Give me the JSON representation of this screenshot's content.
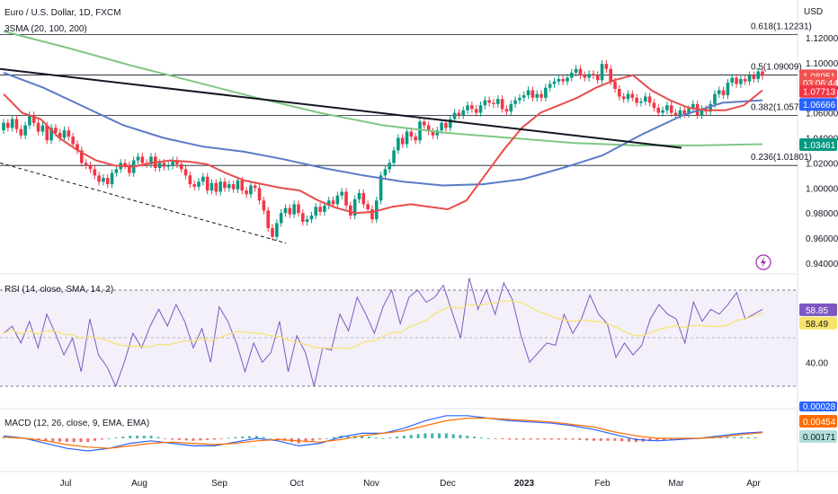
{
  "header": {
    "symbol_title": "Euro / U.S. Dollar, 1D, FXCM",
    "indicator_label": "3SMA (20, 100, 200)",
    "currency": "USD"
  },
  "price_axis": {
    "ticks": [
      "1.12000",
      "1.10000",
      "1.08000",
      "1.06000",
      "1.04000",
      "1.02000",
      "1.00000",
      "0.98000",
      "0.96000",
      "0.94000"
    ],
    "tick_values": [
      1.12,
      1.1,
      1.08,
      1.06,
      1.04,
      1.02,
      1.0,
      0.98,
      0.96,
      0.94
    ],
    "badges": [
      {
        "text": "1.08951",
        "value": 1.0895,
        "color": "#ef5350",
        "text_color": "#ffffff"
      },
      {
        "text": "03:06:44",
        "value": 1.084,
        "color": "#ef5350",
        "text_color": "#ffffff"
      },
      {
        "text": "1.07713",
        "value": 1.0771,
        "color": "#f23645",
        "text_color": "#ffffff"
      },
      {
        "text": "1.06666",
        "value": 1.0667,
        "color": "#2962ff",
        "text_color": "#ffffff"
      },
      {
        "text": "1.03461",
        "value": 1.0346,
        "color": "#089981",
        "text_color": "#ffffff"
      }
    ]
  },
  "fib_levels": [
    {
      "label": "0.618(1.12231)",
      "value": 1.1223
    },
    {
      "label": "0.5(1.09009)",
      "value": 1.0901
    },
    {
      "label": "0.382(1.05787)",
      "value": 1.0579
    },
    {
      "label": "0.236(1.01801)",
      "value": 1.018
    }
  ],
  "rsi": {
    "label": "RSI (14, close, SMA, 14, 2)",
    "tick": "40.00",
    "badge_rsi": "58.85",
    "badge_sma": "58.49"
  },
  "macd": {
    "label": "MACD (12, 26, close, 9, EMA, EMA)",
    "badge_top": "0.00028",
    "badge_signal": "0.00454",
    "badge_hist": "0.00171"
  },
  "time_axis": {
    "labels": [
      "Jul",
      "Aug",
      "Sep",
      "Oct",
      "Nov",
      "Dec",
      "2023",
      "Feb",
      "Mar",
      "Apr"
    ]
  },
  "chart_data": {
    "type": "candlestick",
    "title": "Euro / U.S. Dollar, 1D, FXCM",
    "y_range": [
      0.935,
      1.1285
    ],
    "closes": [
      1.052,
      1.048,
      1.055,
      1.047,
      1.042,
      1.05,
      1.058,
      1.052,
      1.045,
      1.05,
      1.038,
      1.048,
      1.044,
      1.04,
      1.046,
      1.041,
      1.035,
      1.03,
      1.02,
      1.018,
      1.015,
      1.01,
      1.005,
      1.008,
      1.003,
      1.012,
      1.015,
      1.02,
      1.018,
      1.012,
      1.022,
      1.025,
      1.02,
      1.019,
      1.025,
      1.016,
      1.02,
      1.017,
      1.018,
      1.022,
      1.019,
      1.015,
      1.01,
      1.003,
      1.001,
      1.005,
      1.009,
      0.998,
      1.004,
      0.997,
      1.005,
      1.0,
      1.003,
      0.999,
      1.006,
      0.998,
      0.995,
      1.002,
      1.0,
      0.99,
      0.982,
      0.968,
      0.961,
      0.972,
      0.98,
      0.984,
      0.979,
      0.987,
      0.98,
      0.973,
      0.975,
      0.978,
      0.985,
      0.981,
      0.986,
      0.99,
      0.987,
      0.994,
      0.997,
      0.986,
      0.978,
      0.991,
      0.996,
      0.987,
      0.983,
      0.975,
      0.99,
      1.01,
      1.015,
      1.02,
      1.03,
      1.04,
      1.035,
      1.045,
      1.041,
      1.038,
      1.053,
      1.05,
      1.045,
      1.042,
      1.046,
      1.052,
      1.048,
      1.055,
      1.06,
      1.058,
      1.062,
      1.066,
      1.063,
      1.06,
      1.066,
      1.07,
      1.068,
      1.067,
      1.071,
      1.063,
      1.061,
      1.067,
      1.07,
      1.072,
      1.074,
      1.078,
      1.072,
      1.075,
      1.072,
      1.08,
      1.083,
      1.085,
      1.087,
      1.085,
      1.088,
      1.092,
      1.095,
      1.09,
      1.088,
      1.091,
      1.09,
      1.086,
      1.099,
      1.095,
      1.085,
      1.079,
      1.073,
      1.071,
      1.075,
      1.072,
      1.068,
      1.069,
      1.073,
      1.068,
      1.064,
      1.06,
      1.062,
      1.066,
      1.06,
      1.058,
      1.062,
      1.059,
      1.063,
      1.067,
      1.058,
      1.063,
      1.061,
      1.067,
      1.075,
      1.078,
      1.074,
      1.084,
      1.088,
      1.083,
      1.087,
      1.085,
      1.09,
      1.087,
      1.093,
      1.0895
    ],
    "sma_20_red": [
      1.075,
      1.06,
      1.055,
      1.04,
      1.03,
      1.022,
      1.018,
      1.017,
      1.02,
      1.022,
      1.021,
      1.019,
      1.012,
      1.006,
      1.003,
      1.0,
      0.998,
      0.99,
      0.984,
      0.98,
      0.981,
      0.985,
      0.987,
      0.985,
      0.983,
      0.99,
      1.01,
      1.03,
      1.048,
      1.06,
      1.066,
      1.072,
      1.08,
      1.086,
      1.09,
      1.078,
      1.07,
      1.064,
      1.062,
      1.062,
      1.066,
      1.078
    ],
    "sma_100_blue": [
      1.092,
      1.08,
      1.065,
      1.05,
      1.04,
      1.033,
      1.029,
      1.023,
      1.016,
      1.01,
      1.005,
      1.002,
      1.003,
      1.007,
      1.016,
      1.026,
      1.043,
      1.058,
      1.068,
      1.07
    ],
    "sma_200_green": [
      1.125,
      1.112,
      1.098,
      1.085,
      1.072,
      1.06,
      1.05,
      1.044,
      1.04,
      1.036,
      1.034,
      1.034,
      1.035
    ],
    "trendline": {
      "from": [
        1.095,
        "start"
      ],
      "to": [
        1.032,
        "Mar"
      ]
    },
    "rsi_values": [
      52,
      55,
      48,
      57,
      46,
      60,
      52,
      43,
      50,
      36,
      58,
      43,
      38,
      30,
      40,
      52,
      46,
      55,
      62,
      55,
      64,
      57,
      46,
      54,
      40,
      63,
      57,
      48,
      36,
      48,
      40,
      44,
      57,
      36,
      51,
      44,
      30,
      46,
      45,
      60,
      53,
      67,
      60,
      52,
      63,
      70,
      56,
      67,
      70,
      65,
      67,
      72,
      61,
      50,
      75,
      62,
      70,
      60,
      73,
      66,
      51,
      40,
      44,
      48,
      47,
      60,
      52,
      58,
      68,
      60,
      56,
      42,
      48,
      43,
      47,
      58,
      64,
      60,
      58,
      48,
      65,
      57,
      62,
      60,
      64,
      69,
      58,
      60,
      62
    ],
    "macd_values": [
      0.002,
      0.0,
      -0.004,
      -0.008,
      -0.01,
      -0.008,
      -0.004,
      -0.002,
      -0.004,
      -0.006,
      -0.006,
      -0.003,
      0.0,
      -0.002,
      -0.006,
      -0.004,
      0.001,
      0.004,
      0.004,
      0.008,
      0.014,
      0.018,
      0.018,
      0.016,
      0.014,
      0.013,
      0.012,
      0.01,
      0.007,
      0.003,
      -0.001,
      -0.002,
      -0.001,
      0.0,
      0.002,
      0.004,
      0.005
    ],
    "signal_values": [
      0.001,
      0.0,
      -0.002,
      -0.005,
      -0.007,
      -0.008,
      -0.006,
      -0.004,
      -0.003,
      -0.004,
      -0.005,
      -0.004,
      -0.002,
      -0.001,
      -0.002,
      -0.003,
      -0.001,
      0.002,
      0.004,
      0.006,
      0.01,
      0.014,
      0.016,
      0.016,
      0.015,
      0.014,
      0.013,
      0.011,
      0.009,
      0.005,
      0.002,
      0.0,
      0.0,
      0.0,
      0.001,
      0.003,
      0.0045
    ]
  }
}
